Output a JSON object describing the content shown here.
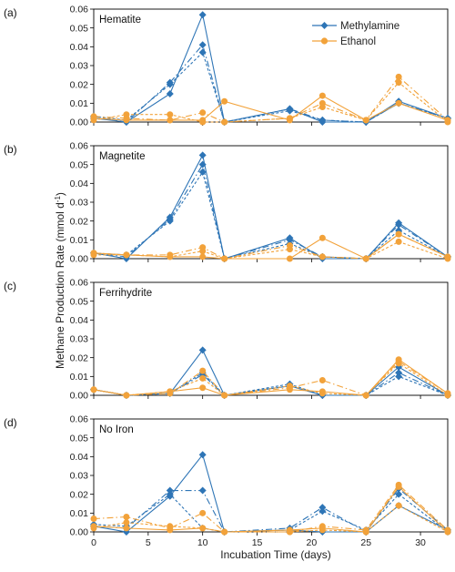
{
  "chart_data": {
    "type": "line",
    "xlabel": "Incubation Time (days)",
    "ylabel": "Methane Production Rate (mmol d",
    "ylabel_superscript": "-1",
    "ylabel_suffix": ")",
    "xlim": [
      0,
      32.5
    ],
    "xticks": [
      "0",
      "5",
      "10",
      "15",
      "20",
      "25",
      "30"
    ],
    "ylim": [
      0,
      0.06
    ],
    "yticks": [
      "0.00",
      "0.01",
      "0.02",
      "0.03",
      "0.04",
      "0.05",
      "0.06"
    ],
    "x": [
      0,
      3,
      7,
      10,
      12,
      18,
      21,
      25,
      28,
      32.5
    ],
    "grid": false,
    "legend": {
      "placement": "top-right",
      "entries": [
        {
          "name": "Methylamine",
          "marker": "diamond",
          "color": "#2e75b6"
        },
        {
          "name": "Ethanol",
          "marker": "circle",
          "color": "#f2a23a"
        }
      ]
    },
    "panels": [
      {
        "label": "(a)",
        "title": "Hematite",
        "series": [
          {
            "name": "Methylamine",
            "style": "solid",
            "values": [
              0.002,
              0.0,
              0.015,
              0.057,
              0.0,
              0.007,
              0.0,
              0.0,
              0.011,
              0.002
            ]
          },
          {
            "name": "Methylamine",
            "style": "dashdot",
            "values": [
              0.003,
              0.0,
              0.021,
              0.041,
              0.0,
              0.007,
              0.001,
              0.0,
              0.01,
              0.002
            ]
          },
          {
            "name": "Methylamine",
            "style": "dashed",
            "values": [
              0.003,
              0.001,
              0.02,
              0.037,
              0.0,
              0.006,
              0.001,
              0.0,
              0.01,
              0.002
            ]
          },
          {
            "name": "Ethanol",
            "style": "solid",
            "values": [
              0.002,
              0.001,
              0.001,
              0.001,
              0.011,
              0.001,
              0.014,
              0.001,
              0.01,
              0.001
            ]
          },
          {
            "name": "Ethanol",
            "style": "dashdot",
            "values": [
              0.003,
              0.002,
              0.001,
              0.005,
              0.0,
              0.002,
              0.01,
              0.001,
              0.024,
              0.001
            ]
          },
          {
            "name": "Ethanol",
            "style": "dashed",
            "values": [
              0.001,
              0.004,
              0.004,
              0.0,
              0.0,
              0.002,
              0.008,
              0.001,
              0.021,
              0.0
            ]
          }
        ]
      },
      {
        "label": "(b)",
        "title": "Magnetite",
        "series": [
          {
            "name": "Methylamine",
            "style": "solid",
            "values": [
              0.003,
              0.0,
              0.022,
              0.055,
              0.0,
              0.011,
              0.0,
              0.0,
              0.019,
              0.001
            ]
          },
          {
            "name": "Methylamine",
            "style": "dashdot",
            "values": [
              0.003,
              0.001,
              0.021,
              0.05,
              0.0,
              0.01,
              0.001,
              0.0,
              0.018,
              0.001
            ]
          },
          {
            "name": "Methylamine",
            "style": "dashed",
            "values": [
              0.003,
              0.002,
              0.02,
              0.046,
              0.0,
              0.008,
              0.001,
              0.0,
              0.015,
              0.001
            ]
          },
          {
            "name": "Ethanol",
            "style": "solid",
            "values": [
              0.003,
              0.002,
              0.001,
              0.001,
              0.0,
              0.0,
              0.011,
              0.0,
              0.013,
              0.001
            ]
          },
          {
            "name": "Ethanol",
            "style": "dashdot",
            "values": [
              0.003,
              0.002,
              0.002,
              0.006,
              0.0,
              0.007,
              0.001,
              0.0,
              0.013,
              0.001
            ]
          },
          {
            "name": "Ethanol",
            "style": "dashed",
            "values": [
              0.002,
              0.002,
              0.001,
              0.004,
              0.0,
              0.005,
              0.001,
              0.0,
              0.009,
              0.0
            ]
          }
        ]
      },
      {
        "label": "(c)",
        "title": "Ferrihydrite",
        "series": [
          {
            "name": "Methylamine",
            "style": "solid",
            "values": [
              0.003,
              0.0,
              0.001,
              0.024,
              0.0,
              0.005,
              0.0,
              0.0,
              0.015,
              0.0
            ]
          },
          {
            "name": "Methylamine",
            "style": "dashdot",
            "values": [
              0.003,
              0.0,
              0.001,
              0.011,
              0.0,
              0.005,
              0.0,
              0.0,
              0.012,
              0.0
            ]
          },
          {
            "name": "Methylamine",
            "style": "dashed",
            "values": [
              0.003,
              0.0,
              0.001,
              0.012,
              0.0,
              0.006,
              0.0,
              0.0,
              0.01,
              0.0
            ]
          },
          {
            "name": "Ethanol",
            "style": "solid",
            "values": [
              0.003,
              0.0,
              0.002,
              0.004,
              0.0,
              0.003,
              0.002,
              0.0,
              0.019,
              0.001
            ]
          },
          {
            "name": "Ethanol",
            "style": "dashdot",
            "values": [
              0.003,
              0.0,
              0.001,
              0.013,
              0.0,
              0.004,
              0.008,
              0.0,
              0.018,
              0.001
            ]
          },
          {
            "name": "Ethanol",
            "style": "dashed",
            "values": [
              0.003,
              0.0,
              0.002,
              0.009,
              0.0,
              0.005,
              0.001,
              0.0,
              0.017,
              0.0
            ]
          }
        ]
      },
      {
        "label": "(d)",
        "title": "No Iron",
        "series": [
          {
            "name": "Methylamine",
            "style": "solid",
            "values": [
              0.003,
              0.0,
              0.019,
              0.041,
              0.0,
              0.001,
              0.0,
              0.0,
              0.014,
              0.001
            ]
          },
          {
            "name": "Methylamine",
            "style": "dashdot",
            "values": [
              0.003,
              0.002,
              0.022,
              0.022,
              0.0,
              0.002,
              0.013,
              0.0,
              0.023,
              0.001
            ]
          },
          {
            "name": "Methylamine",
            "style": "dashed",
            "values": [
              0.004,
              0.003,
              0.02,
              0.002,
              0.0,
              0.001,
              0.011,
              0.001,
              0.02,
              0.0
            ]
          },
          {
            "name": "Ethanol",
            "style": "solid",
            "values": [
              0.003,
              0.002,
              0.001,
              0.002,
              0.0,
              0.001,
              0.002,
              0.0,
              0.024,
              0.0
            ]
          },
          {
            "name": "Ethanol",
            "style": "dashdot",
            "values": [
              0.007,
              0.008,
              0.002,
              0.01,
              0.0,
              0.0,
              0.003,
              0.001,
              0.025,
              0.001
            ]
          },
          {
            "name": "Ethanol",
            "style": "dashed",
            "values": [
              0.002,
              0.005,
              0.003,
              0.002,
              0.0,
              0.0,
              0.001,
              0.0,
              0.014,
              0.0
            ]
          }
        ]
      }
    ]
  }
}
